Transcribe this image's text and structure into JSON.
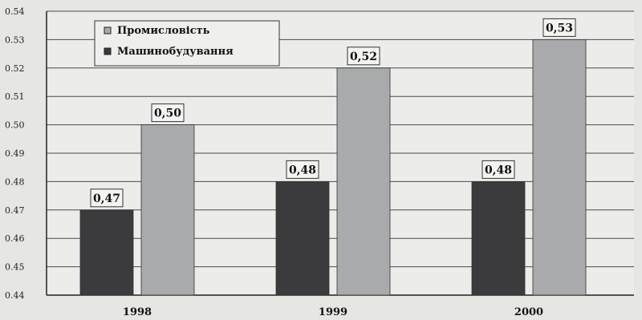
{
  "chart_data": {
    "type": "bar",
    "title": "",
    "xlabel": "",
    "ylabel": "",
    "categories": [
      "1998",
      "1999",
      "2000"
    ],
    "series": [
      {
        "name": "Машинобудування",
        "values": [
          0.47,
          0.48,
          0.48
        ],
        "labels": [
          "0,47",
          "0,48",
          "0,48"
        ],
        "color": "#3b3b3d"
      },
      {
        "name": "Промисловість",
        "values": [
          0.5,
          0.52,
          0.53
        ],
        "labels": [
          "0,50",
          "0,52",
          "0,53"
        ],
        "color": "#a9aaab"
      }
    ],
    "ylim": [
      0.44,
      0.54
    ],
    "yticks": [
      "0.44",
      "0.45",
      "0.46",
      "0.47",
      "0.48",
      "0.49",
      "0.50",
      "0.51",
      "0.52",
      "0.53",
      "0.54"
    ],
    "grid": true,
    "legend_position": "top-left",
    "legend_order": [
      1,
      0
    ]
  }
}
